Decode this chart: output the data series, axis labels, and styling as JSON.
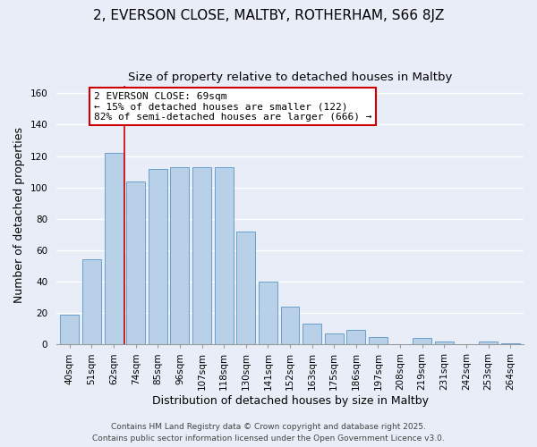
{
  "title": "2, EVERSON CLOSE, MALTBY, ROTHERHAM, S66 8JZ",
  "subtitle": "Size of property relative to detached houses in Maltby",
  "xlabel": "Distribution of detached houses by size in Maltby",
  "ylabel": "Number of detached properties",
  "bar_labels": [
    "40sqm",
    "51sqm",
    "62sqm",
    "74sqm",
    "85sqm",
    "96sqm",
    "107sqm",
    "118sqm",
    "130sqm",
    "141sqm",
    "152sqm",
    "163sqm",
    "175sqm",
    "186sqm",
    "197sqm",
    "208sqm",
    "219sqm",
    "231sqm",
    "242sqm",
    "253sqm",
    "264sqm"
  ],
  "bar_values": [
    19,
    54,
    122,
    104,
    112,
    113,
    113,
    113,
    72,
    40,
    24,
    13,
    7,
    9,
    5,
    0,
    4,
    2,
    0,
    2,
    1
  ],
  "bar_color": "#b8d0e8",
  "bar_edge_color": "#6aa0cc",
  "reference_line_color": "#cc0000",
  "annotation_text": "2 EVERSON CLOSE: 69sqm\n← 15% of detached houses are smaller (122)\n82% of semi-detached houses are larger (666) →",
  "annotation_box_color": "#ffffff",
  "annotation_box_edge_color": "#cc0000",
  "ylim": [
    0,
    165
  ],
  "yticks": [
    0,
    20,
    40,
    60,
    80,
    100,
    120,
    140,
    160
  ],
  "footer_line1": "Contains HM Land Registry data © Crown copyright and database right 2025.",
  "footer_line2": "Contains public sector information licensed under the Open Government Licence v3.0.",
  "background_color": "#e8edf8",
  "grid_color": "#ffffff",
  "title_fontsize": 11,
  "subtitle_fontsize": 9.5,
  "axis_label_fontsize": 9,
  "tick_fontsize": 7.5,
  "annotation_fontsize": 8,
  "footer_fontsize": 6.5
}
